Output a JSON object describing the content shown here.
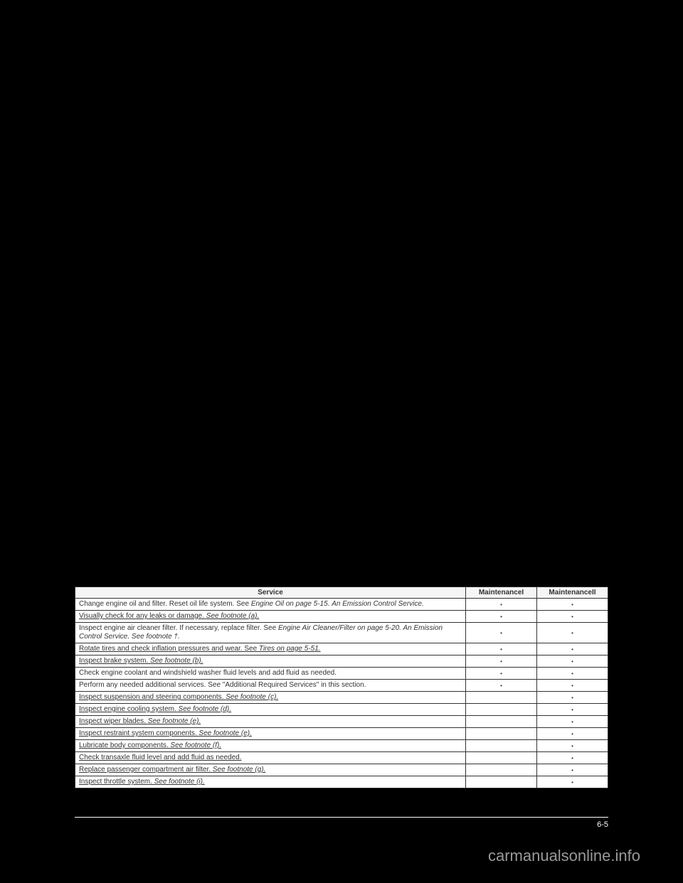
{
  "table": {
    "headers": {
      "service": "Service",
      "maintenance1": "MaintenanceI",
      "maintenance2": "MaintenanceII"
    },
    "rows": [
      {
        "service": "Change engine oil and filter. Reset oil life system. See <span class='italic'>Engine Oil on page 5-15</span>. <span class='italic'>An Emission Control Service.</span>",
        "m1": "•",
        "m2": "•"
      },
      {
        "service": "<span class='underline'>Visually check for any leaks or damage. <span class='italic'>See footnote (a).</span></span>",
        "m1": "•",
        "m2": "•"
      },
      {
        "service": "Inspect engine air cleaner filter. If necessary, replace filter. See <span class='italic'>Engine Air Cleaner/Filter on page 5-20. An Emission Control Service. See footnote †.</span>",
        "m1": "•",
        "m2": "•"
      },
      {
        "service": "<span class='underline'>Rotate tires and check inflation pressures and wear. See <span class='italic'>Tires on page 5-51.</span></span>",
        "m1": "•",
        "m2": "•"
      },
      {
        "service": "<span class='underline'>Inspect brake system. <span class='italic'>See footnote (b).</span></span>",
        "m1": "•",
        "m2": "•"
      },
      {
        "service": "Check engine coolant and windshield washer fluid levels and add fluid as needed.",
        "m1": "•",
        "m2": "•"
      },
      {
        "service": "Perform any needed additional services. See \"Additional Required Services\" in this section.",
        "m1": "•",
        "m2": "•"
      },
      {
        "service": "<span class='underline'>Inspect suspension and steering components. <span class='italic'>See footnote (c).</span></span>",
        "m1": "",
        "m2": "•"
      },
      {
        "service": "<span class='underline'>Inspect engine cooling system. <span class='italic'>See footnote (d).</span></span>",
        "m1": "",
        "m2": "•"
      },
      {
        "service": "<span class='underline'>Inspect wiper blades. <span class='italic'>See footnote (e).</span></span>",
        "m1": "",
        "m2": "•"
      },
      {
        "service": "<span class='underline'>Inspect restraint system components. <span class='italic'>See footnote (e).</span></span>",
        "m1": "",
        "m2": "•"
      },
      {
        "service": "<span class='underline'>Lubricate body components. <span class='italic'>See footnote (f).</span></span>",
        "m1": "",
        "m2": "•"
      },
      {
        "service": "<span class='underline'>Check transaxle fluid level and add fluid as needed.</span>",
        "m1": "",
        "m2": "•"
      },
      {
        "service": "<span class='underline'>Replace passenger compartment air filter. <span class='italic'>See footnote (g).</span></span>",
        "m1": "",
        "m2": "•"
      },
      {
        "service": "<span class='underline'>Inspect throttle system. <span class='italic'>See footnote (i).</span></span>",
        "m1": "",
        "m2": "•"
      }
    ]
  },
  "pageNumber": "6-5",
  "watermark": "carmanualsonline.info"
}
